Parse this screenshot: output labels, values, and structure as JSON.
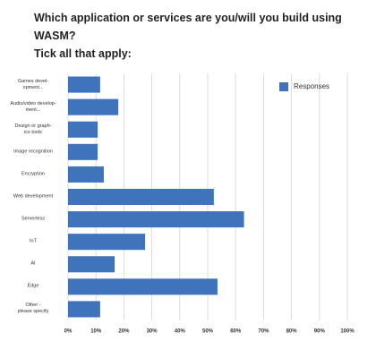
{
  "chart_data": {
    "type": "bar",
    "orientation": "horizontal",
    "title": "Which application or services are you/will you build using WASM?\nTick all that apply:",
    "categories": [
      "Games devel-\nopment...",
      "Audio/video develop-\nment...",
      "Design or graph-\nics tools",
      "Image recognition",
      "Encryption",
      "Web development",
      "Serverless",
      "IoT",
      "AI",
      "Edge",
      "Other -\nplease specify"
    ],
    "series": [
      {
        "name": "Responses",
        "color": "#3f74bd",
        "values": [
          11.5,
          18,
          10.6,
          10.6,
          12.8,
          52.2,
          63,
          27.6,
          16.7,
          53.5,
          11.5
        ]
      }
    ],
    "xlim": [
      0,
      100
    ],
    "xticks": [
      {
        "value": 0,
        "label": "0%"
      },
      {
        "value": 10,
        "label": "10%"
      },
      {
        "value": 20,
        "label": "20%"
      },
      {
        "value": 30,
        "label": "30%"
      },
      {
        "value": 40,
        "label": "40%"
      },
      {
        "value": 50,
        "label": "50%"
      },
      {
        "value": 60,
        "label": "60%"
      },
      {
        "value": 70,
        "label": "70%"
      },
      {
        "value": 80,
        "label": "80%"
      },
      {
        "value": 90,
        "label": "90%"
      },
      {
        "value": 100,
        "label": "100%"
      }
    ],
    "grid": true,
    "legend": "top-right"
  }
}
